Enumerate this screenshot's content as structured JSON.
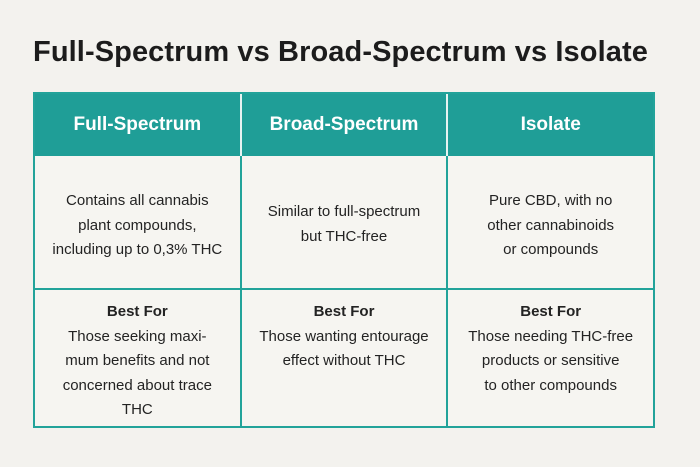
{
  "title": "Full-Spectrum vs Broad-Spectrum vs Isolate",
  "columns": [
    {
      "header": "Full-Spectrum",
      "description": [
        "Contains all cannabis",
        "plant compounds,",
        "including up to 0,3% THC"
      ],
      "best_for_label": "Best For",
      "best_for": [
        "Those seeking maxi-",
        "mum benefits and not",
        "concerned about trace",
        "THC"
      ]
    },
    {
      "header": "Broad-Spectrum",
      "description": [
        "Similar to full-spectrum",
        "but THC-free"
      ],
      "best_for_label": "Best For",
      "best_for": [
        "Those wanting entourage",
        "effect without THC"
      ]
    },
    {
      "header": "Isolate",
      "description": [
        "Pure CBD, with no",
        "other cannabinoids",
        "or compounds"
      ],
      "best_for_label": "Best For",
      "best_for": [
        "Those needing THC-free",
        "products or sensitive",
        "to other compounds"
      ]
    }
  ],
  "colors": {
    "header_bg": "#1f9e97",
    "border": "#22a39a",
    "background": "#f3f2ee"
  }
}
